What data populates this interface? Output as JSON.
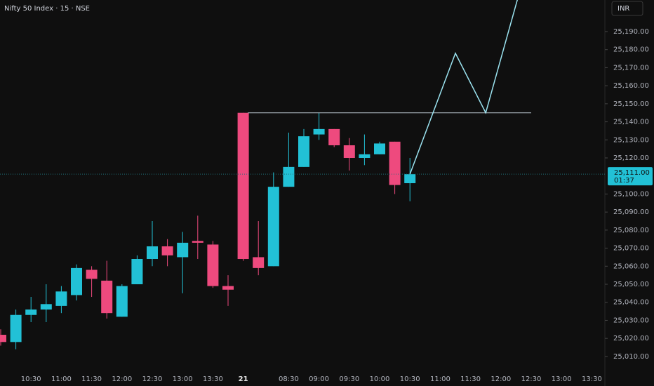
{
  "chart_data": {
    "type": "candlestick",
    "title": "Nifty 50 Index · 15 · NSE",
    "currency": "INR",
    "categories": [
      null,
      null,
      "10:30",
      null,
      "11:00",
      null,
      "11:30",
      null,
      "12:00",
      null,
      "12:30",
      null,
      "13:00",
      null,
      "13:30",
      null,
      "21",
      null,
      null,
      "08:30",
      null,
      "09:00",
      null,
      "09:30",
      null,
      "10:00",
      null,
      "10:30",
      null,
      "11:00",
      null,
      "11:30",
      null,
      "12:00",
      null,
      "12:30",
      null,
      "13:00",
      null,
      "13:30"
    ],
    "open": [
      25022,
      25018,
      25033,
      25036,
      25038,
      25044,
      25058,
      25052,
      25032,
      25050,
      25064,
      25071,
      25065,
      25074,
      25072,
      25049,
      25145,
      25065,
      25060,
      25104,
      25115,
      25133,
      25136,
      25127,
      25120,
      25122,
      25129,
      25106,
      null,
      null,
      null,
      null,
      null,
      null,
      null,
      null,
      null,
      null,
      null,
      null
    ],
    "high": [
      25025,
      25036,
      25043,
      25050,
      25049,
      25061,
      25060,
      25063,
      25050,
      25066,
      25085,
      25075,
      25079,
      25088,
      25074,
      25055,
      25145,
      25085,
      25112,
      25134,
      25136,
      25145,
      25136,
      25131,
      25133,
      25129,
      25129,
      25120,
      null,
      null,
      null,
      null,
      null,
      null,
      null,
      null,
      null,
      null,
      null,
      null
    ],
    "low": [
      25016,
      25014,
      25029,
      25029,
      25034,
      25041,
      25043,
      25031,
      25032,
      25050,
      25060,
      25060,
      25045,
      25064,
      25048,
      25038,
      25063,
      25055,
      25060,
      25104,
      25115,
      25130,
      25126,
      25113,
      25116,
      25122,
      25100,
      25096,
      null,
      null,
      null,
      null,
      null,
      null,
      null,
      null,
      null,
      null,
      null,
      null
    ],
    "close": [
      25018,
      25033,
      25036,
      25039,
      25046,
      25059,
      25053,
      25034,
      25049,
      25064,
      25071,
      25066,
      25073,
      25073,
      25049,
      25047,
      25064,
      25059,
      25104,
      25115,
      25132,
      25136,
      25127,
      25120,
      25122,
      25128,
      25105,
      25111,
      null,
      null,
      null,
      null,
      null,
      null,
      null,
      null,
      null,
      null,
      null,
      null
    ],
    "up_color": "#22c1d6",
    "down_color": "#ee4a7e",
    "last_price_label": "25,111.00",
    "countdown": "01:37",
    "level": {
      "value": 25145,
      "x": [
        16.3,
        35
      ],
      "color": "#b7c4cc"
    },
    "projection": {
      "x": [
        27,
        30,
        32,
        34.1
      ],
      "values": [
        25111,
        25178,
        25145,
        25208
      ],
      "color": "#9be3f0"
    },
    "ylim": [
      25001.4,
      25207.5
    ],
    "yticks": [
      {
        "value": 25010,
        "label": "25,010.00"
      },
      {
        "value": 25020,
        "label": "25,020.00"
      },
      {
        "value": 25030,
        "label": "25,030.00"
      },
      {
        "value": 25040,
        "label": "25,040.00"
      },
      {
        "value": 25050,
        "label": "25,050.00"
      },
      {
        "value": 25060,
        "label": "25,060.00"
      },
      {
        "value": 25070,
        "label": "25,070.00"
      },
      {
        "value": 25080,
        "label": "25,080.00"
      },
      {
        "value": 25090,
        "label": "25,090.00"
      },
      {
        "value": 25100,
        "label": "25,100.00"
      },
      {
        "value": 25120,
        "label": "25,120.00"
      },
      {
        "value": 25130,
        "label": "25,130.00"
      },
      {
        "value": 25140,
        "label": "25,140.00"
      },
      {
        "value": 25150,
        "label": "25,150.00"
      },
      {
        "value": 25160,
        "label": "25,160.00"
      },
      {
        "value": 25170,
        "label": "25,170.00"
      },
      {
        "value": 25180,
        "label": "25,180.00"
      },
      {
        "value": 25190,
        "label": "25,190.00"
      }
    ],
    "grid": false
  }
}
